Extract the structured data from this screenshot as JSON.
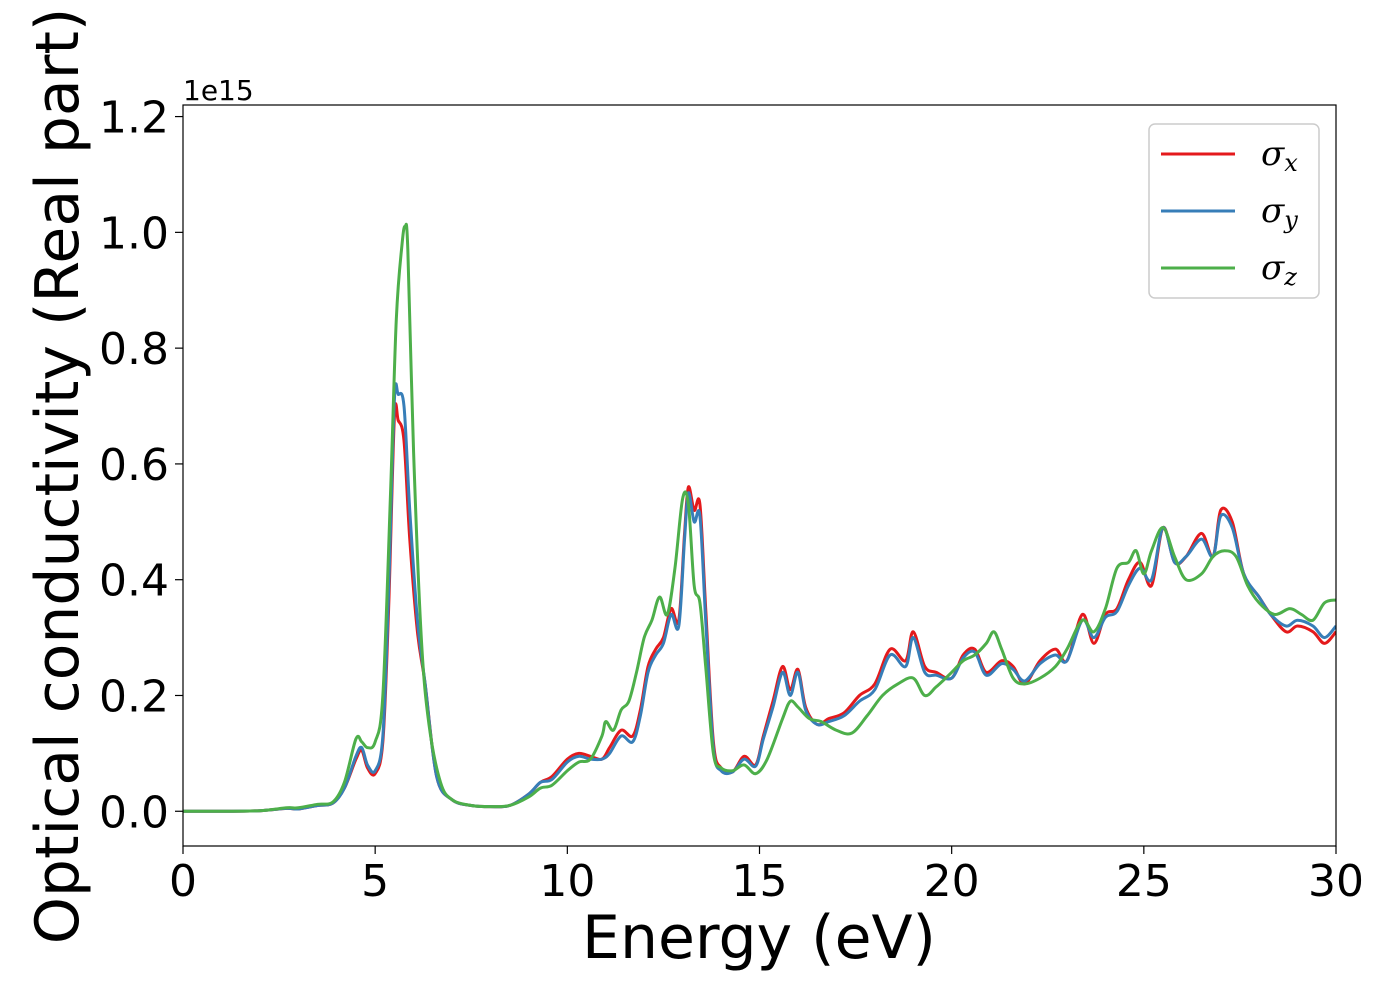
{
  "chart_data": {
    "type": "line",
    "title": "",
    "xlabel": "Energy (eV)",
    "ylabel": "Optical conductivity (Real part)",
    "y_offset_label": "1e15",
    "xlim": [
      0,
      30
    ],
    "ylim": [
      -0.06,
      1.22
    ],
    "x_ticks": [
      0,
      5,
      10,
      15,
      20,
      25,
      30
    ],
    "x_tick_labels": [
      "0",
      "5",
      "10",
      "15",
      "20",
      "25",
      "30"
    ],
    "y_ticks": [
      0.0,
      0.2,
      0.4,
      0.6,
      0.8,
      1.0,
      1.2
    ],
    "y_tick_labels": [
      "0.0",
      "0.2",
      "0.4",
      "0.6",
      "0.8",
      "1.0",
      "1.2"
    ],
    "grid": false,
    "legend_position": "top-right",
    "colors": {
      "x": "#e41a1c",
      "y": "#377eb8",
      "z": "#4daf4a"
    },
    "series": [
      {
        "name": "σx",
        "legend_symbol": "σ",
        "legend_subscript": "x",
        "color": "#e41a1c",
        "x": [
          0,
          1,
          2,
          2.7,
          3,
          3.5,
          3.9,
          4.2,
          4.5,
          4.65,
          4.8,
          5.0,
          5.2,
          5.35,
          5.5,
          5.6,
          5.75,
          5.9,
          6.1,
          6.3,
          6.6,
          7,
          7.5,
          8,
          8.5,
          9,
          9.3,
          9.6,
          10,
          10.3,
          10.6,
          10.9,
          11.1,
          11.4,
          11.7,
          11.9,
          12.1,
          12.3,
          12.5,
          12.7,
          12.9,
          13.05,
          13.15,
          13.3,
          13.45,
          13.6,
          13.8,
          14,
          14.3,
          14.6,
          14.9,
          15.1,
          15.35,
          15.6,
          15.8,
          16.0,
          16.2,
          16.5,
          16.8,
          17.2,
          17.6,
          18.0,
          18.4,
          18.8,
          19.0,
          19.3,
          19.6,
          20.0,
          20.3,
          20.6,
          20.9,
          21.3,
          21.6,
          21.9,
          22.3,
          22.7,
          23.0,
          23.4,
          23.7,
          24.0,
          24.3,
          24.6,
          24.9,
          25.2,
          25.5,
          25.8,
          26.1,
          26.5,
          26.8,
          27.0,
          27.3,
          27.6,
          28.0,
          28.3,
          28.7,
          29.0,
          29.4,
          29.7,
          30
        ],
        "y": [
          0,
          0,
          0.001,
          0.005,
          0.004,
          0.01,
          0.014,
          0.04,
          0.09,
          0.105,
          0.075,
          0.065,
          0.12,
          0.35,
          0.68,
          0.675,
          0.64,
          0.47,
          0.31,
          0.22,
          0.06,
          0.02,
          0.01,
          0.008,
          0.01,
          0.03,
          0.05,
          0.06,
          0.09,
          0.1,
          0.095,
          0.09,
          0.11,
          0.14,
          0.13,
          0.175,
          0.25,
          0.28,
          0.3,
          0.35,
          0.33,
          0.48,
          0.56,
          0.52,
          0.53,
          0.35,
          0.12,
          0.075,
          0.068,
          0.095,
          0.08,
          0.13,
          0.19,
          0.25,
          0.21,
          0.245,
          0.18,
          0.15,
          0.16,
          0.17,
          0.2,
          0.22,
          0.28,
          0.26,
          0.31,
          0.25,
          0.24,
          0.23,
          0.27,
          0.28,
          0.24,
          0.26,
          0.25,
          0.22,
          0.26,
          0.28,
          0.26,
          0.34,
          0.29,
          0.34,
          0.35,
          0.4,
          0.43,
          0.39,
          0.49,
          0.43,
          0.44,
          0.48,
          0.44,
          0.52,
          0.5,
          0.41,
          0.37,
          0.34,
          0.31,
          0.32,
          0.31,
          0.29,
          0.31
        ]
      },
      {
        "name": "σy",
        "legend_symbol": "σ",
        "legend_subscript": "y",
        "color": "#377eb8",
        "x": [
          0,
          1,
          2,
          2.7,
          3,
          3.5,
          3.9,
          4.2,
          4.5,
          4.65,
          4.8,
          5.0,
          5.2,
          5.35,
          5.5,
          5.6,
          5.75,
          5.9,
          6.1,
          6.3,
          6.6,
          7,
          7.5,
          8,
          8.5,
          9,
          9.3,
          9.6,
          10,
          10.3,
          10.6,
          10.9,
          11.1,
          11.4,
          11.7,
          11.9,
          12.1,
          12.3,
          12.5,
          12.7,
          12.9,
          13.05,
          13.15,
          13.3,
          13.45,
          13.6,
          13.8,
          14,
          14.3,
          14.6,
          14.9,
          15.1,
          15.35,
          15.6,
          15.8,
          16.0,
          16.2,
          16.5,
          16.8,
          17.2,
          17.6,
          18.0,
          18.4,
          18.8,
          19.0,
          19.3,
          19.6,
          20.0,
          20.3,
          20.6,
          20.9,
          21.3,
          21.6,
          21.9,
          22.3,
          22.7,
          23.0,
          23.4,
          23.7,
          24.0,
          24.3,
          24.6,
          24.9,
          25.2,
          25.5,
          25.8,
          26.1,
          26.5,
          26.8,
          27.0,
          27.3,
          27.6,
          28.0,
          28.3,
          28.7,
          29.0,
          29.4,
          29.7,
          30
        ],
        "y": [
          0,
          0,
          0.001,
          0.005,
          0.004,
          0.01,
          0.014,
          0.04,
          0.095,
          0.11,
          0.08,
          0.07,
          0.13,
          0.38,
          0.71,
          0.72,
          0.7,
          0.52,
          0.33,
          0.22,
          0.06,
          0.02,
          0.01,
          0.008,
          0.01,
          0.03,
          0.05,
          0.055,
          0.085,
          0.095,
          0.09,
          0.09,
          0.1,
          0.13,
          0.12,
          0.165,
          0.24,
          0.27,
          0.29,
          0.34,
          0.32,
          0.47,
          0.55,
          0.5,
          0.51,
          0.33,
          0.11,
          0.07,
          0.068,
          0.09,
          0.078,
          0.125,
          0.18,
          0.24,
          0.2,
          0.24,
          0.175,
          0.15,
          0.155,
          0.165,
          0.19,
          0.21,
          0.27,
          0.25,
          0.3,
          0.24,
          0.235,
          0.23,
          0.265,
          0.275,
          0.235,
          0.255,
          0.245,
          0.225,
          0.255,
          0.27,
          0.26,
          0.33,
          0.3,
          0.335,
          0.345,
          0.39,
          0.42,
          0.4,
          0.49,
          0.43,
          0.44,
          0.47,
          0.44,
          0.51,
          0.49,
          0.41,
          0.37,
          0.34,
          0.32,
          0.33,
          0.32,
          0.3,
          0.32
        ]
      },
      {
        "name": "σz",
        "legend_symbol": "σ",
        "legend_subscript": "z",
        "color": "#4daf4a",
        "x": [
          0,
          1,
          2,
          2.7,
          3,
          3.5,
          3.9,
          4.2,
          4.5,
          4.65,
          4.8,
          5.0,
          5.2,
          5.4,
          5.55,
          5.7,
          5.78,
          5.85,
          6.0,
          6.2,
          6.4,
          6.7,
          7,
          7.5,
          8,
          8.5,
          9,
          9.3,
          9.6,
          10,
          10.3,
          10.6,
          10.9,
          11.0,
          11.2,
          11.4,
          11.6,
          11.8,
          12.0,
          12.2,
          12.4,
          12.6,
          12.8,
          13.0,
          13.15,
          13.3,
          13.45,
          13.6,
          13.8,
          14,
          14.3,
          14.6,
          14.9,
          15.2,
          15.6,
          15.8,
          16.0,
          16.3,
          16.6,
          17.0,
          17.4,
          17.8,
          18.2,
          18.6,
          19.0,
          19.3,
          19.6,
          20.0,
          20.3,
          20.6,
          20.9,
          21.1,
          21.3,
          21.6,
          21.9,
          22.3,
          22.7,
          23.0,
          23.4,
          23.7,
          24.0,
          24.3,
          24.6,
          24.8,
          25.0,
          25.2,
          25.5,
          25.8,
          26.1,
          26.5,
          26.8,
          27.1,
          27.4,
          27.7,
          28.0,
          28.4,
          28.8,
          29.1,
          29.4,
          29.7,
          30
        ],
        "y": [
          0,
          0,
          0.001,
          0.006,
          0.006,
          0.012,
          0.016,
          0.05,
          0.125,
          0.12,
          0.11,
          0.12,
          0.2,
          0.55,
          0.85,
          0.98,
          1.01,
          0.97,
          0.62,
          0.3,
          0.15,
          0.05,
          0.02,
          0.01,
          0.008,
          0.01,
          0.025,
          0.04,
          0.045,
          0.07,
          0.085,
          0.09,
          0.13,
          0.155,
          0.14,
          0.175,
          0.19,
          0.24,
          0.3,
          0.33,
          0.37,
          0.34,
          0.42,
          0.54,
          0.53,
          0.39,
          0.36,
          0.25,
          0.1,
          0.075,
          0.07,
          0.08,
          0.065,
          0.09,
          0.16,
          0.19,
          0.18,
          0.16,
          0.155,
          0.14,
          0.135,
          0.165,
          0.2,
          0.22,
          0.23,
          0.2,
          0.215,
          0.24,
          0.26,
          0.27,
          0.29,
          0.31,
          0.28,
          0.23,
          0.22,
          0.23,
          0.25,
          0.28,
          0.33,
          0.31,
          0.35,
          0.42,
          0.43,
          0.45,
          0.41,
          0.45,
          0.49,
          0.44,
          0.4,
          0.41,
          0.44,
          0.45,
          0.44,
          0.39,
          0.36,
          0.34,
          0.35,
          0.34,
          0.33,
          0.36,
          0.365
        ]
      }
    ]
  }
}
